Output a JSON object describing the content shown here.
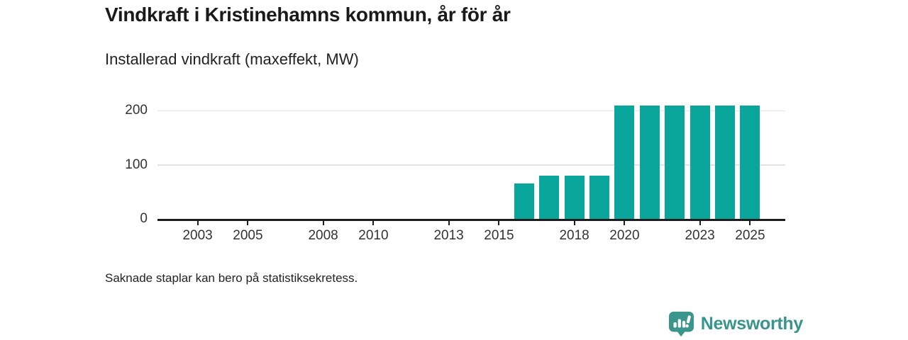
{
  "header": {
    "title": "Vindkraft i Kristinehamns kommun, år för år",
    "subtitle": "Installerad vindkraft (maxeffekt, MW)"
  },
  "chart_data": {
    "type": "bar",
    "title": "Vindkraft i Kristinehamns kommun, år för år",
    "ylabel": "Installerad vindkraft (maxeffekt, MW)",
    "unit": "MW",
    "x": [
      2016,
      2017,
      2018,
      2019,
      2020,
      2021,
      2022,
      2023,
      2024,
      2025
    ],
    "values": [
      65,
      80,
      80,
      80,
      210,
      210,
      210,
      210,
      210,
      210
    ],
    "x_ticks": [
      2003,
      2005,
      2008,
      2010,
      2013,
      2015,
      2018,
      2020,
      2023,
      2025
    ],
    "y_ticks": [
      0,
      100,
      200
    ],
    "ylim": [
      0,
      220
    ],
    "xlim": [
      2001.4,
      2026.4
    ],
    "grid": "horizontal",
    "legend": "none",
    "bar_color": "#0ba69b"
  },
  "footer": {
    "note": "Saknade staplar kan bero på statistiksekretess."
  },
  "branding": {
    "name": "Newsworthy",
    "color": "#38948c",
    "icon": "newsworthy-bubble-bar-chart-icon",
    "icon_color": "#3a958c"
  }
}
